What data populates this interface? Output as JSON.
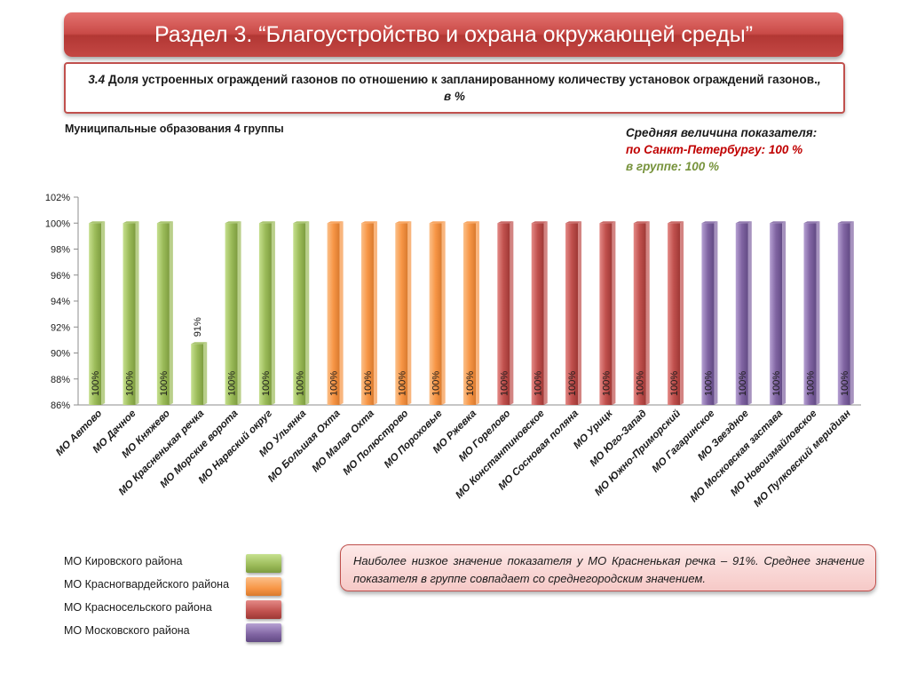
{
  "header": {
    "title": "Раздел 3. “Благоустройство и охрана окружающей среды”",
    "subtitle_num": "3.4",
    "subtitle_text": " Доля устроенных ограждений газонов по отношению к запланированному количеству установок ограждений газонов.",
    "subtitle_unit": ", в %"
  },
  "group_label": "Муниципальные образования 4 группы",
  "average": {
    "title": "Средняя величина показателя:",
    "spb": "по Санкт-Петербургу:  100 %",
    "group": "в группе:  100 %"
  },
  "colors": {
    "Kirovsky": "#9bbb59",
    "Krasnogvardeysky": "#f79646",
    "Krasnoselsky": "#c0504d",
    "Moskovsky": "#8064a2"
  },
  "chart_data": {
    "type": "bar",
    "ylim": [
      86,
      102
    ],
    "yticks": [
      "86%",
      "88%",
      "90%",
      "92%",
      "94%",
      "96%",
      "98%",
      "100%",
      "102%"
    ],
    "categories": [
      "МО Автово",
      "МО Дачное",
      "МО Княжево",
      "МО Красненькая речка",
      "МО Морские ворота",
      "МО Нарвский округ",
      "МО Ульянка",
      "МО Большая Охта",
      "МО Малая Охта",
      "МО Полюстрово",
      "МО Пороховые",
      "МО Ржевка",
      "МО Горелово",
      "МО Константиновское",
      "МО Сосновая поляна",
      "МО Урицк",
      "МО Юго-Запад",
      "МО Южно-Приморский",
      "МО Гагаринское",
      "МО Звездное",
      "МО Московская застава",
      "МО Новоизмайловское",
      "МО Пулковский меридиан"
    ],
    "values": [
      100,
      100,
      100,
      90.7,
      100,
      100,
      100,
      100,
      100,
      100,
      100,
      100,
      100,
      100,
      100,
      100,
      100,
      100,
      100,
      100,
      100,
      100,
      100
    ],
    "labels": [
      "100%",
      "100%",
      "100%",
      "91%",
      "100%",
      "100%",
      "100%",
      "100%",
      "100%",
      "100%",
      "100%",
      "100%",
      "100%",
      "100%",
      "100%",
      "100%",
      "100%",
      "100%",
      "100%",
      "100%",
      "100%",
      "100%",
      "100%"
    ],
    "groups": [
      "Kirovsky",
      "Kirovsky",
      "Kirovsky",
      "Kirovsky",
      "Kirovsky",
      "Kirovsky",
      "Kirovsky",
      "Krasnogvardeysky",
      "Krasnogvardeysky",
      "Krasnogvardeysky",
      "Krasnogvardeysky",
      "Krasnogvardeysky",
      "Krasnoselsky",
      "Krasnoselsky",
      "Krasnoselsky",
      "Krasnoselsky",
      "Krasnoselsky",
      "Krasnoselsky",
      "Moskovsky",
      "Moskovsky",
      "Moskovsky",
      "Moskovsky",
      "Moskovsky"
    ]
  },
  "legend": [
    {
      "label": "МО Кировского района",
      "color": "#9bbb59"
    },
    {
      "label": "МО Красногвардейского района",
      "color": "#f79646"
    },
    {
      "label": "МО Красносельского района",
      "color": "#c0504d"
    },
    {
      "label": "МО Московского района",
      "color": "#8064a2"
    }
  ],
  "note": "Наиболее низкое значение показателя  у МО Красненькая речка – 91%. Среднее значение показателя в группе совпадает со среднегородским значением."
}
